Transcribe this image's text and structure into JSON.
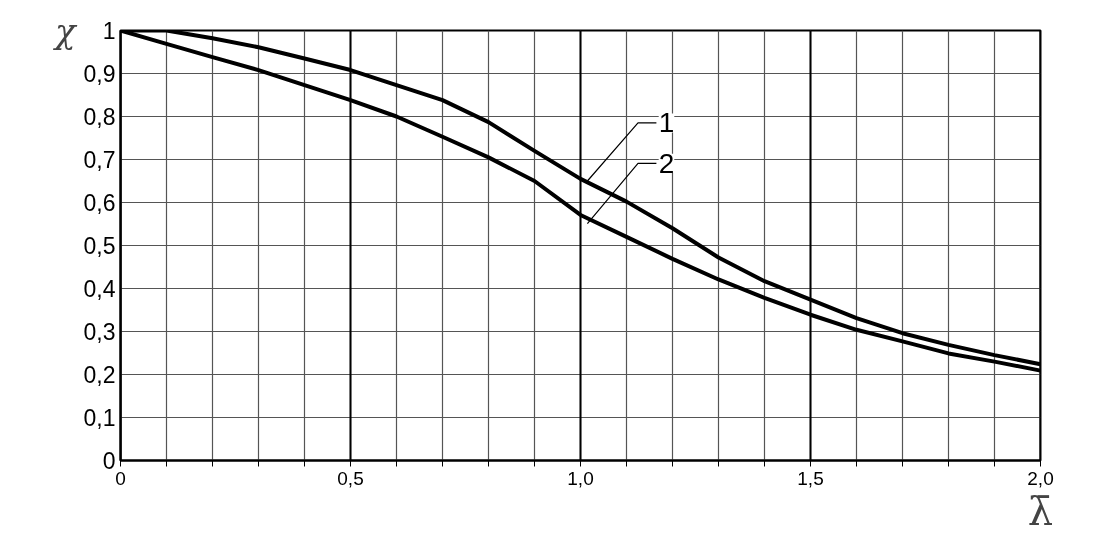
{
  "chart_data": {
    "type": "line",
    "xlabel": "λ̄",
    "ylabel": "χ",
    "x": [
      0,
      0.1,
      0.2,
      0.3,
      0.4,
      0.5,
      0.6,
      0.7,
      0.8,
      0.9,
      1.0,
      1.1,
      1.2,
      1.3,
      1.4,
      1.5,
      1.6,
      1.7,
      1.8,
      1.9,
      2.0
    ],
    "series": [
      {
        "name": "1",
        "color": "#000000",
        "values": [
          1.0,
          1.0,
          0.982,
          0.961,
          0.935,
          0.908,
          0.873,
          0.838,
          0.787,
          0.72,
          0.655,
          0.602,
          0.54,
          0.472,
          0.417,
          0.374,
          0.331,
          0.296,
          0.269,
          0.245,
          0.224
        ]
      },
      {
        "name": "2",
        "color": "#000000",
        "values": [
          1.0,
          0.969,
          0.938,
          0.908,
          0.873,
          0.838,
          0.8,
          0.753,
          0.705,
          0.65,
          0.571,
          0.52,
          0.469,
          0.421,
          0.378,
          0.339,
          0.304,
          0.277,
          0.249,
          0.23,
          0.209
        ]
      }
    ],
    "xlim": [
      0,
      2.0
    ],
    "ylim": [
      0,
      1
    ],
    "xticks": [
      {
        "value": 0,
        "label": "0"
      },
      {
        "value": 0.1,
        "label": null
      },
      {
        "value": 0.2,
        "label": null
      },
      {
        "value": 0.3,
        "label": null
      },
      {
        "value": 0.4,
        "label": null
      },
      {
        "value": 0.5,
        "label": "0,5"
      },
      {
        "value": 0.6,
        "label": null
      },
      {
        "value": 0.7,
        "label": null
      },
      {
        "value": 0.8,
        "label": null
      },
      {
        "value": 0.9,
        "label": null
      },
      {
        "value": 1.0,
        "label": "1,0"
      },
      {
        "value": 1.1,
        "label": null
      },
      {
        "value": 1.2,
        "label": null
      },
      {
        "value": 1.3,
        "label": null
      },
      {
        "value": 1.4,
        "label": null
      },
      {
        "value": 1.5,
        "label": "1,5"
      },
      {
        "value": 1.6,
        "label": null
      },
      {
        "value": 1.7,
        "label": null
      },
      {
        "value": 1.8,
        "label": null
      },
      {
        "value": 1.9,
        "label": null
      },
      {
        "value": 2.0,
        "label": "2,0"
      }
    ],
    "yticks": [
      {
        "value": 0,
        "label": "0"
      },
      {
        "value": 0.1,
        "label": "0,1"
      },
      {
        "value": 0.2,
        "label": "0,2"
      },
      {
        "value": 0.3,
        "label": "0,3"
      },
      {
        "value": 0.4,
        "label": "0,4"
      },
      {
        "value": 0.5,
        "label": "0,5"
      },
      {
        "value": 0.6,
        "label": "0,6"
      },
      {
        "value": 0.7,
        "label": "0,7"
      },
      {
        "value": 0.8,
        "label": "0,8"
      },
      {
        "value": 0.9,
        "label": "0,9"
      },
      {
        "value": 1,
        "label": "1"
      }
    ],
    "grid": true,
    "line_style": "solid"
  }
}
